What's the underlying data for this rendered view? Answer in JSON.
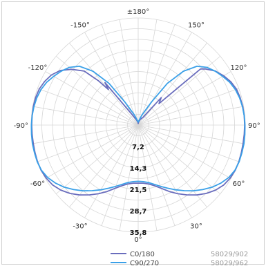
{
  "chart_data": {
    "type": "polar",
    "title": "",
    "ring_labels": [
      "7,2",
      "14,3",
      "21,5",
      "28,7",
      "35,8"
    ],
    "ring_max": 35.8,
    "rings": 5,
    "angle_labels": [
      {
        "text": "±180°",
        "deg": 180
      },
      {
        "text": "150°",
        "deg": 150
      },
      {
        "text": "120°",
        "deg": 120
      },
      {
        "text": "90°",
        "deg": 90
      },
      {
        "text": "60°",
        "deg": 60
      },
      {
        "text": "30°",
        "deg": 30
      },
      {
        "text": "0°",
        "deg": 0
      },
      {
        "text": "-30°",
        "deg": -30
      },
      {
        "text": "-60°",
        "deg": -60
      },
      {
        "text": "-90°",
        "deg": -90
      },
      {
        "text": "-120°",
        "deg": -120
      },
      {
        "text": "-150°",
        "deg": -150
      }
    ],
    "grid": true,
    "legend_position": "bottom",
    "series": [
      {
        "name": "C0/180",
        "code": "58029/902",
        "color": "#6a6dbd",
        "points": [
          [
            0,
            19.4
          ],
          [
            -5,
            19.5
          ],
          [
            -10,
            20
          ],
          [
            -15,
            21
          ],
          [
            -20,
            22.5
          ],
          [
            -25,
            24.5
          ],
          [
            -30,
            26.5
          ],
          [
            -35,
            28.5
          ],
          [
            -40,
            30.5
          ],
          [
            -45,
            32.3
          ],
          [
            -50,
            33.8
          ],
          [
            -55,
            34.9
          ],
          [
            -60,
            35.5
          ],
          [
            -65,
            35.8
          ],
          [
            -70,
            35.8
          ],
          [
            -75,
            35.7
          ],
          [
            -80,
            35.6
          ],
          [
            -85,
            35.6
          ],
          [
            -90,
            35.6
          ],
          [
            -95,
            35.6
          ],
          [
            -100,
            35.6
          ],
          [
            -105,
            35.5
          ],
          [
            -110,
            35.2
          ],
          [
            -115,
            34.5
          ],
          [
            -120,
            33.5
          ],
          [
            -125,
            31.8
          ],
          [
            -130,
            29
          ],
          [
            -135,
            25.5
          ],
          [
            -138,
            20
          ],
          [
            -140,
            15.5
          ],
          [
            -142,
            18
          ],
          [
            -150,
            4
          ],
          [
            -160,
            2
          ],
          [
            -175,
            1
          ],
          [
            -180,
            0.5
          ],
          [
            175,
            1
          ],
          [
            160,
            2
          ],
          [
            148,
            3
          ],
          [
            140,
            12
          ],
          [
            136,
            10
          ],
          [
            132,
            28
          ],
          [
            130,
            29.2
          ],
          [
            125,
            31.5
          ],
          [
            120,
            33
          ],
          [
            115,
            34.2
          ],
          [
            110,
            35
          ],
          [
            105,
            35.3
          ],
          [
            100,
            35.5
          ],
          [
            95,
            35.6
          ],
          [
            90,
            35.6
          ],
          [
            85,
            35.6
          ],
          [
            80,
            35.6
          ],
          [
            75,
            35.7
          ],
          [
            70,
            35.8
          ],
          [
            65,
            35.8
          ],
          [
            60,
            35.5
          ],
          [
            55,
            34.9
          ],
          [
            50,
            33.8
          ],
          [
            45,
            32.3
          ],
          [
            40,
            30.5
          ],
          [
            35,
            28.5
          ],
          [
            30,
            26.5
          ],
          [
            25,
            24.5
          ],
          [
            20,
            22.5
          ],
          [
            15,
            21
          ],
          [
            10,
            20
          ],
          [
            5,
            19.5
          ],
          [
            0,
            19.4
          ]
        ]
      },
      {
        "name": "C90/270",
        "code": "58029/962",
        "color": "#3aa0e8",
        "points": [
          [
            0,
            18.8
          ],
          [
            -5,
            19
          ],
          [
            -10,
            19.5
          ],
          [
            -15,
            20.5
          ],
          [
            -20,
            21.8
          ],
          [
            -25,
            23.3
          ],
          [
            -30,
            25
          ],
          [
            -35,
            26.8
          ],
          [
            -40,
            28.7
          ],
          [
            -45,
            30.5
          ],
          [
            -50,
            32.3
          ],
          [
            -55,
            33.8
          ],
          [
            -60,
            35
          ],
          [
            -65,
            35.7
          ],
          [
            -70,
            35.9
          ],
          [
            -75,
            35.9
          ],
          [
            -80,
            35.9
          ],
          [
            -85,
            35.8
          ],
          [
            -90,
            35.7
          ],
          [
            -95,
            35.6
          ],
          [
            -100,
            35.4
          ],
          [
            -105,
            35.1
          ],
          [
            -110,
            34.6
          ],
          [
            -115,
            33.8
          ],
          [
            -120,
            32.6
          ],
          [
            -125,
            31.4
          ],
          [
            -130,
            30
          ],
          [
            -135,
            27.8
          ],
          [
            -140,
            23.5
          ],
          [
            -145,
            17
          ],
          [
            -150,
            9
          ],
          [
            -160,
            3.5
          ],
          [
            -170,
            1.5
          ],
          [
            -180,
            1
          ],
          [
            170,
            1.5
          ],
          [
            160,
            3.5
          ],
          [
            150,
            9
          ],
          [
            145,
            17
          ],
          [
            140,
            23.5
          ],
          [
            135,
            27.8
          ],
          [
            130,
            30
          ],
          [
            125,
            31.4
          ],
          [
            120,
            32.6
          ],
          [
            115,
            33.8
          ],
          [
            110,
            34.6
          ],
          [
            105,
            35.1
          ],
          [
            100,
            35.4
          ],
          [
            95,
            35.6
          ],
          [
            90,
            35.7
          ],
          [
            85,
            35.8
          ],
          [
            80,
            35.9
          ],
          [
            75,
            35.9
          ],
          [
            70,
            35.9
          ],
          [
            65,
            35.7
          ],
          [
            60,
            35
          ],
          [
            55,
            33.8
          ],
          [
            50,
            32.3
          ],
          [
            45,
            30.5
          ],
          [
            40,
            28.7
          ],
          [
            35,
            26.8
          ],
          [
            30,
            25
          ],
          [
            25,
            23.3
          ],
          [
            20,
            21.8
          ],
          [
            15,
            20.5
          ],
          [
            10,
            19.5
          ],
          [
            5,
            19
          ],
          [
            0,
            18.8
          ]
        ]
      }
    ]
  }
}
